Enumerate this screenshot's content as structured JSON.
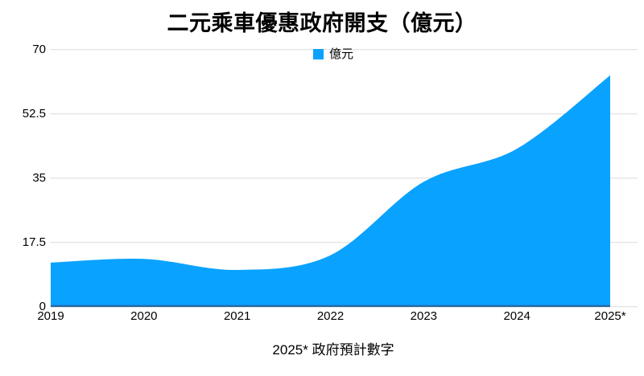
{
  "title": "二元乘車優惠政府開支（億元）",
  "footer_note": "2025* 政府預計數字",
  "legend": {
    "label": "億元",
    "swatch_color": "#0AA2FF"
  },
  "chart_data": {
    "type": "area",
    "title": "二元乘車優惠政府開支（億元）",
    "categories": [
      "2019",
      "2020",
      "2021",
      "2022",
      "2023",
      "2024",
      "2025*"
    ],
    "series": [
      {
        "name": "億元",
        "values": [
          12,
          13,
          10,
          14,
          34,
          43,
          63
        ]
      }
    ],
    "xlabel": "",
    "ylabel": "",
    "ylim": [
      0,
      70
    ],
    "y_ticks": [
      0,
      17.5,
      35,
      52.5,
      70
    ],
    "y_tick_labels": [
      "0",
      "17.5",
      "35",
      "52.5",
      "70"
    ],
    "grid": true,
    "legend_position": "top-center",
    "annotation": "2025* 政府預計數字",
    "colors": {
      "area_fill": "#0AA2FF",
      "baseline": "#2866A0",
      "gridline": "#DBDBDB",
      "text": "#000000"
    }
  }
}
